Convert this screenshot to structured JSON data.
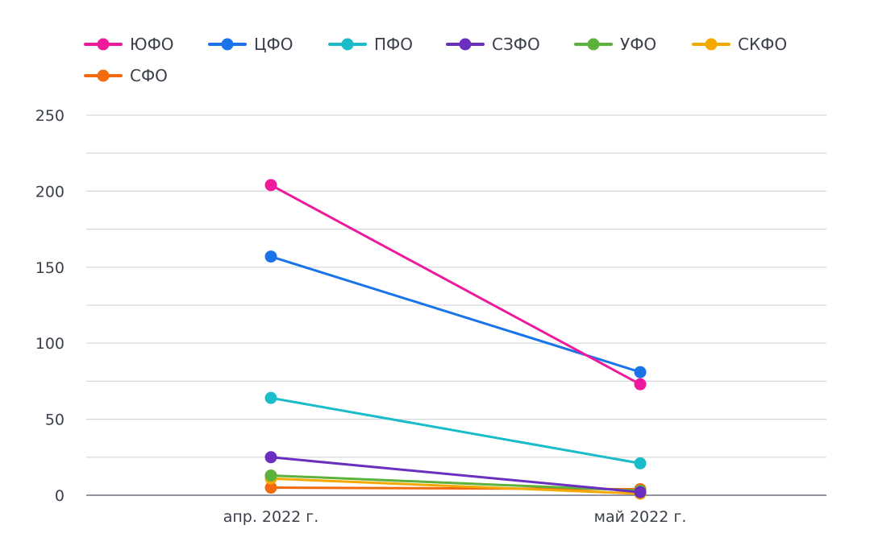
{
  "chart_data": {
    "type": "line",
    "categories": [
      "апр. 2022 г.",
      "май 2022 г."
    ],
    "ylim": [
      0,
      250
    ],
    "yticks": [
      0,
      50,
      100,
      150,
      200,
      250
    ],
    "ytick_labels": [
      "0",
      "50",
      "100",
      "150",
      "200",
      "250"
    ],
    "grid": true,
    "legend": "top-left",
    "series": [
      {
        "name": "ЮФО",
        "color": "#ee1a9b",
        "values": [
          204,
          73
        ]
      },
      {
        "name": "ЦФО",
        "color": "#1a73e8",
        "values": [
          157,
          81
        ]
      },
      {
        "name": "ПФО",
        "color": "#19bcc8",
        "values": [
          64,
          21
        ]
      },
      {
        "name": "СЗФО",
        "color": "#6a2fbf",
        "values": [
          25,
          2
        ]
      },
      {
        "name": "УФО",
        "color": "#5cb23a",
        "values": [
          13,
          3
        ]
      },
      {
        "name": "СКФО",
        "color": "#f5a800",
        "values": [
          11,
          1
        ]
      },
      {
        "name": "СФО",
        "color": "#f26b0f",
        "values": [
          5,
          4
        ]
      }
    ]
  }
}
